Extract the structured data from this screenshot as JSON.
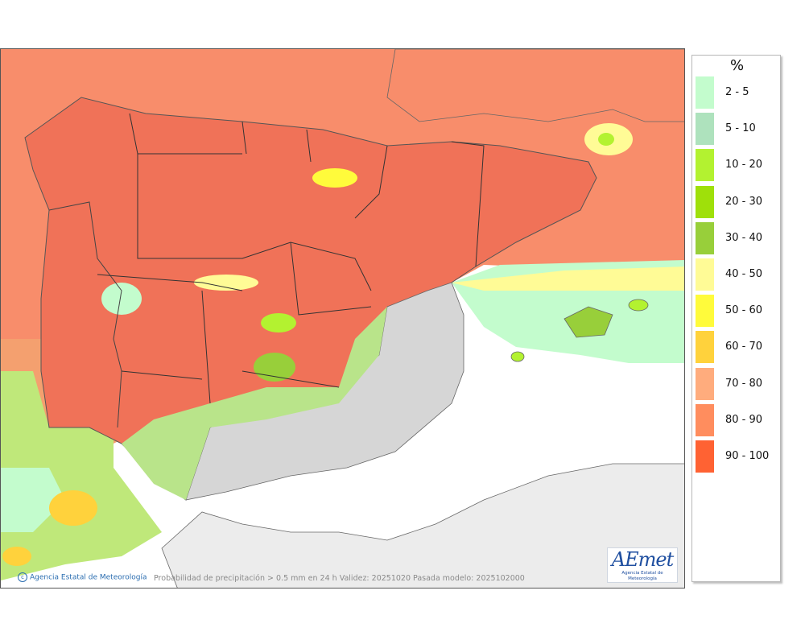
{
  "map": {
    "credit_text": "Agencia Estatal de Meteorología",
    "caption": "Probabilidad de precipitación > 0.5 mm en 24 h Validez: 20251020 Pasada modelo: 2025102000",
    "logo_text": "AEmet",
    "logo_subtext": "Agencia Estatal de Meteorología"
  },
  "legend": {
    "unit": "%",
    "items": [
      {
        "label": "2 - 5",
        "color": "#c3fccd"
      },
      {
        "label": "5 - 10",
        "color": "#aee2bd"
      },
      {
        "label": "10 - 20",
        "color": "#b3f230"
      },
      {
        "label": "20 - 30",
        "color": "#9fe00a"
      },
      {
        "label": "30 - 40",
        "color": "#98cf3a"
      },
      {
        "label": "40 - 50",
        "color": "#fffb96"
      },
      {
        "label": "50 - 60",
        "color": "#fffb3b"
      },
      {
        "label": "60 - 70",
        "color": "#ffd23c"
      },
      {
        "label": "70 - 80",
        "color": "#ffac7d"
      },
      {
        "label": "80 - 90",
        "color": "#ff8d5e"
      },
      {
        "label": "90 - 100",
        "color": "#ff6233"
      }
    ]
  }
}
